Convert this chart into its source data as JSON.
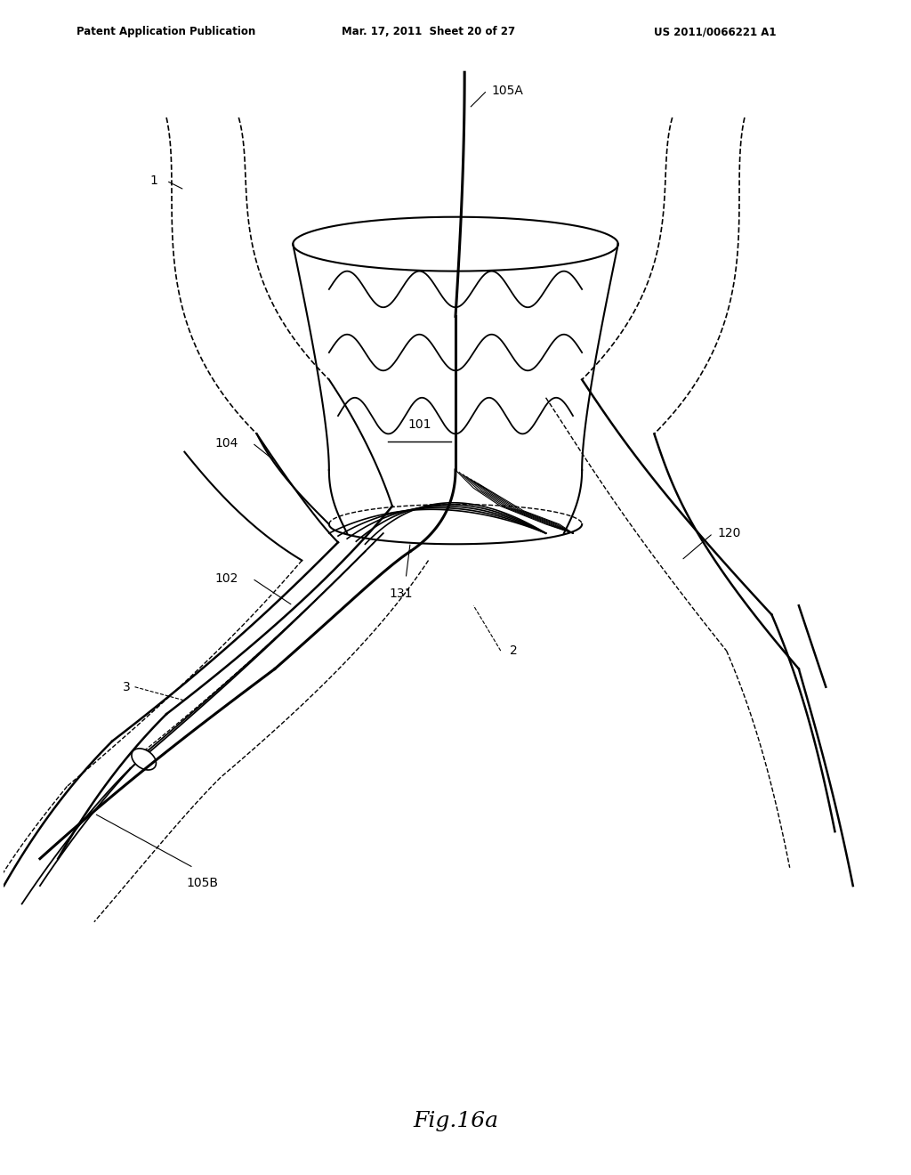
{
  "title": "Fig.16a",
  "header_left": "Patent Application Publication",
  "header_mid": "Mar. 17, 2011  Sheet 20 of 27",
  "header_right": "US 2011/0066221 A1",
  "background_color": "#ffffff",
  "line_color": "#000000"
}
